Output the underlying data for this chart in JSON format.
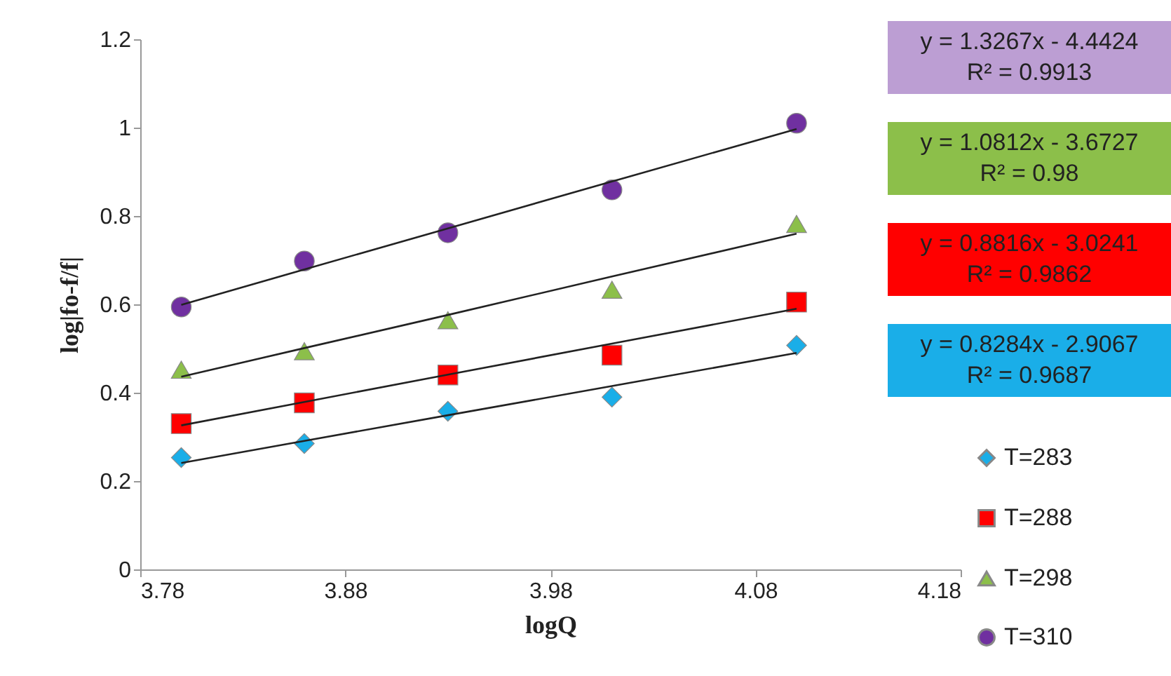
{
  "chart_data": {
    "type": "scatter",
    "xlabel": "logQ",
    "ylabel": "log|fo-f/f|",
    "x": [
      3.8,
      3.86,
      3.93,
      4.01,
      4.1
    ],
    "series": [
      {
        "name": "T=283",
        "color": "#1aaee8",
        "marker": "diamond",
        "values": [
          0.253,
          0.285,
          0.358,
          0.39,
          0.507
        ]
      },
      {
        "name": "T=288",
        "color": "#ff0000",
        "marker": "square",
        "values": [
          0.33,
          0.377,
          0.44,
          0.485,
          0.605
        ]
      },
      {
        "name": "T=298",
        "color": "#8cbf4a",
        "marker": "triangle",
        "values": [
          0.452,
          0.494,
          0.564,
          0.633,
          0.782
        ]
      },
      {
        "name": "T=310",
        "color": "#7030a0",
        "marker": "circle",
        "values": [
          0.594,
          0.698,
          0.762,
          0.859,
          1.01
        ]
      },
      {
        "type": "line",
        "color": "#222222",
        "marker": "none",
        "values": [
          0.241,
          0.291,
          0.349,
          0.415,
          0.49
        ]
      },
      {
        "type": "line",
        "color": "#222222",
        "marker": "none",
        "values": [
          0.326,
          0.379,
          0.441,
          0.511,
          0.59
        ]
      },
      {
        "type": "line",
        "color": "#222222",
        "marker": "none",
        "values": [
          0.436,
          0.501,
          0.576,
          0.663,
          0.76
        ]
      },
      {
        "type": "line",
        "color": "#222222",
        "marker": "none",
        "values": [
          0.599,
          0.679,
          0.772,
          0.878,
          0.997
        ]
      }
    ],
    "annotations": [
      "y = 1.3267x - 4.4424\nR² = 0.9913",
      "y = 1.0812x - 3.6727\nR² = 0.98",
      "y = 0.8816x - 3.0241\nR² = 0.9862",
      "y = 0.8284x - 2.9067\nR² = 0.9687"
    ],
    "xlim": [
      3.78,
      4.18
    ],
    "xticks": [
      3.78,
      3.88,
      3.98,
      4.08,
      4.18
    ],
    "ylim": [
      0,
      1.2
    ],
    "yticks": [
      0,
      0.2,
      0.4,
      0.6,
      0.8,
      1,
      1.2
    ],
    "legend": "right",
    "grid": false
  }
}
